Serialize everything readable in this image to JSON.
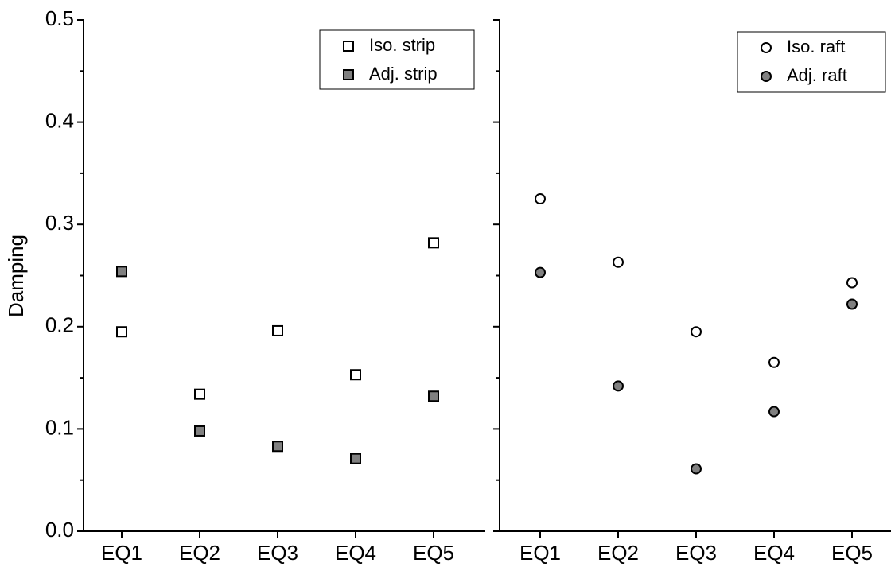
{
  "chart_data": [
    {
      "type": "scatter",
      "ylabel": "Damping",
      "categories": [
        "EQ1",
        "EQ2",
        "EQ3",
        "EQ4",
        "EQ5"
      ],
      "ylim": [
        0,
        0.5
      ],
      "yticks": [
        {
          "value": 0,
          "label": "0.0"
        },
        0.1,
        0.2,
        0.3,
        0.4,
        0.5
      ],
      "yminorticks": [
        0.05,
        0.15,
        0.25,
        0.35,
        0.45
      ],
      "ytick_labels": true,
      "legend": "upper right",
      "series": [
        {
          "name": "Iso. strip",
          "color": "#ffffff",
          "marker": "square",
          "values": [
            0.195,
            0.134,
            0.196,
            0.153,
            0.282
          ]
        },
        {
          "name": "Adj. strip",
          "color": "#808080",
          "marker": "square",
          "values": [
            0.254,
            0.098,
            0.083,
            0.071,
            0.132
          ]
        }
      ]
    },
    {
      "type": "scatter",
      "categories": [
        "EQ1",
        "EQ2",
        "EQ3",
        "EQ4",
        "EQ5"
      ],
      "ylim": [
        0,
        0.5
      ],
      "yticks": [
        0,
        0.1,
        0.2,
        0.3,
        0.4,
        0.5
      ],
      "yminorticks": [
        0.05,
        0.15,
        0.25,
        0.35,
        0.45
      ],
      "ytick_labels": false,
      "legend": "upper right",
      "series": [
        {
          "name": "Iso. raft",
          "color": "#ffffff",
          "marker": "circle",
          "values": [
            0.325,
            0.263,
            0.195,
            0.165,
            0.243
          ]
        },
        {
          "name": "Adj. raft",
          "color": "#808080",
          "marker": "circle",
          "values": [
            0.253,
            0.142,
            0.061,
            0.117,
            0.222
          ]
        }
      ]
    }
  ]
}
